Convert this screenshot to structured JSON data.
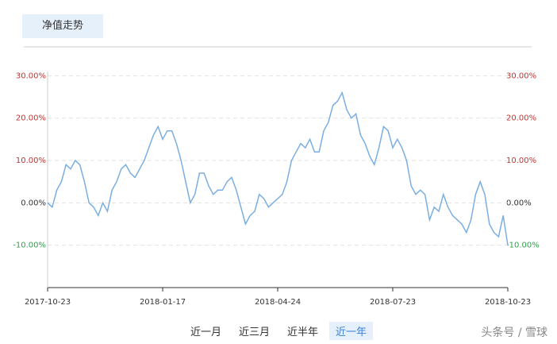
{
  "tab": "净值走势",
  "ranges": [
    "近一月",
    "近三月",
    "近半年",
    "近一年"
  ],
  "active_range": 3,
  "watermark": "头条号 / 雪球",
  "chart_data": {
    "type": "line",
    "categories": [
      "2017-10-23",
      null,
      null,
      null,
      null,
      null,
      null,
      null,
      null,
      null,
      null,
      null,
      null,
      null,
      null,
      null,
      null,
      null,
      null,
      null,
      null,
      null,
      null,
      null,
      null,
      "2018-01-17",
      null,
      null,
      null,
      null,
      null,
      null,
      null,
      null,
      null,
      null,
      null,
      null,
      null,
      null,
      null,
      null,
      null,
      null,
      null,
      null,
      null,
      null,
      null,
      null,
      "2018-04-24",
      null,
      null,
      null,
      null,
      null,
      null,
      null,
      null,
      null,
      null,
      null,
      null,
      null,
      null,
      null,
      null,
      null,
      null,
      null,
      null,
      null,
      null,
      null,
      null,
      "2018-07-23",
      null,
      null,
      null,
      null,
      null,
      null,
      null,
      null,
      null,
      null,
      null,
      null,
      null,
      null,
      null,
      null,
      null,
      null,
      null,
      null,
      null,
      null,
      null,
      null,
      "2018-10-23"
    ],
    "series": [
      {
        "color": "#7aaee0",
        "values": [
          0,
          -1,
          3,
          5,
          9,
          8,
          10,
          9,
          5,
          0,
          -1,
          -3,
          0,
          -2,
          3,
          5,
          8,
          9,
          7,
          6,
          8,
          10,
          13,
          16,
          18,
          15,
          17,
          17,
          14,
          10,
          5,
          0,
          2,
          7,
          7,
          4,
          2,
          3,
          3,
          5,
          6,
          3,
          -1,
          -5,
          -3,
          -2,
          2,
          1,
          -1,
          0,
          1,
          2,
          5,
          10,
          12,
          14,
          13,
          15,
          12,
          12,
          17,
          19,
          23,
          24,
          26,
          22,
          20,
          21,
          16,
          14,
          11,
          9,
          13,
          18,
          17,
          13,
          15,
          13,
          10,
          4,
          2,
          3,
          2,
          -4,
          -1,
          -2,
          2,
          -1,
          -3,
          -4,
          -5,
          -7,
          -4,
          2,
          5,
          2,
          -5,
          -7,
          -8,
          -3,
          -10
        ]
      }
    ],
    "ylim": [
      -20,
      40
    ],
    "yticks": [
      {
        "value": 30,
        "label": "30.00%"
      },
      {
        "value": 20,
        "label": "20.00%"
      },
      {
        "value": 10,
        "label": "10.00%"
      },
      {
        "value": 0,
        "label": "0.00%"
      },
      {
        "value": -10,
        "label": "-10.00%"
      }
    ],
    "grid": true
  }
}
